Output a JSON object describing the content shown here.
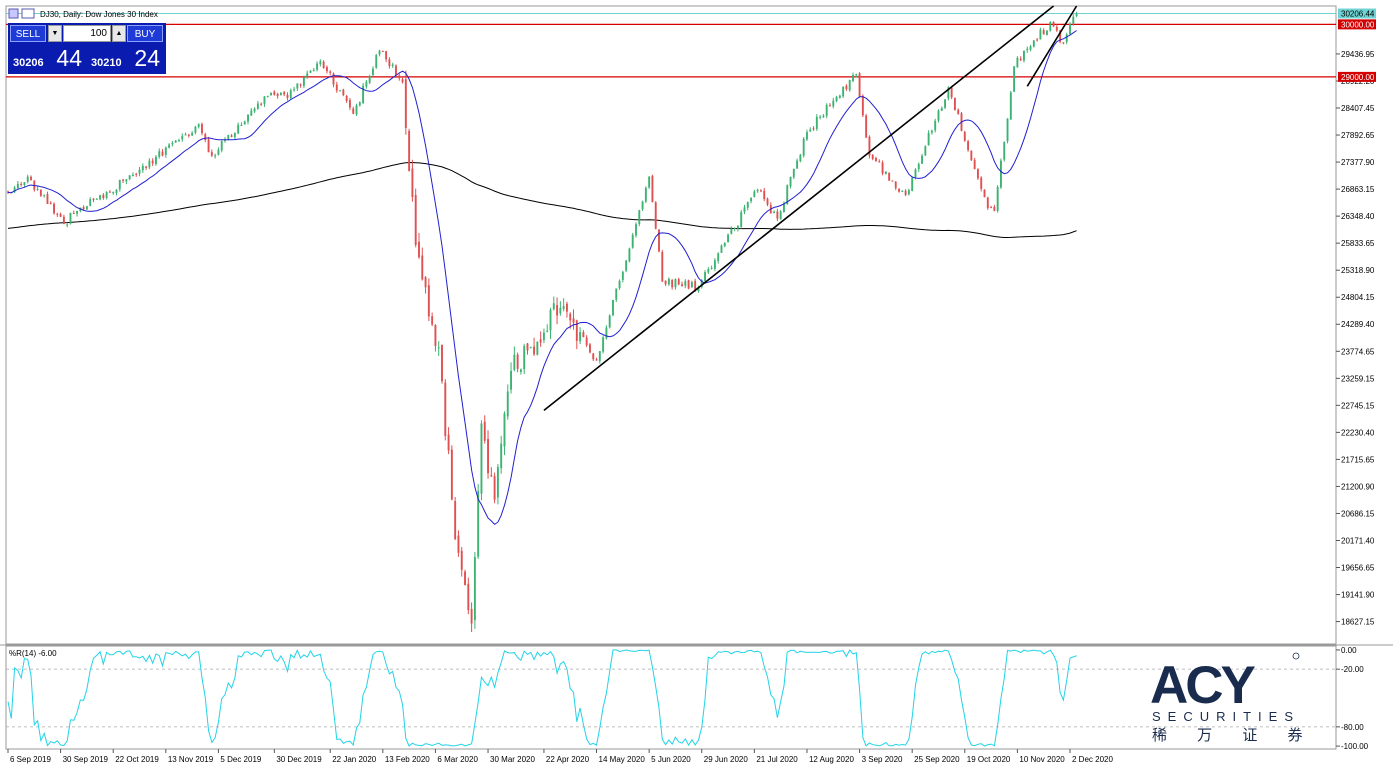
{
  "window": {
    "title": "DJ30, Daily:  Dow Jones 30 Index"
  },
  "trade_panel": {
    "sell_label": "SELL",
    "buy_label": "BUY",
    "lot_value": "100",
    "sell_price_main": "30206",
    "sell_price_big": "44",
    "buy_price_main": "30210",
    "buy_price_big": "24"
  },
  "logo": {
    "brand": "ACY",
    "subtitle": "SECURITIES",
    "chinese": "稀 万 证 券"
  },
  "colors": {
    "bullish": "#3cb371",
    "bearish": "#e05050",
    "ma_fast": "#2020d0",
    "ma_slow": "#000000",
    "hline": "#d40000",
    "current_price": "#6fd3d3",
    "wpr": "#22d3e8",
    "logo": "#1a2c4e"
  },
  "chart_data": [
    {
      "type": "candlestick",
      "title": "DJ30, Daily:  Dow Jones 30 Index",
      "x_tick_labels": [
        "6 Sep 2019",
        "30 Sep 2019",
        "22 Oct 2019",
        "13 Nov 2019",
        "5 Dec 2019",
        "30 Dec 2019",
        "22 Jan 2020",
        "13 Feb 2020",
        "6 Mar 2020",
        "30 Mar 2020",
        "22 Apr 2020",
        "14 May 2020",
        "5 Jun 2020",
        "29 Jun 2020",
        "21 Jul 2020",
        "12 Aug 2020",
        "3 Sep 2020",
        "25 Sep 2020",
        "19 Oct 2020",
        "10 Nov 2020",
        "2 Dec 2020"
      ],
      "y_tick_labels": [
        "29436.95",
        "28922.20",
        "28407.45",
        "27892.65",
        "27377.90",
        "26863.15",
        "26348.40",
        "25833.65",
        "25318.90",
        "24804.15",
        "24289.40",
        "23774.65",
        "23259.15",
        "22745.15",
        "22230.40",
        "21715.65",
        "21200.90",
        "20686.15",
        "20171.40",
        "19656.65",
        "19141.90",
        "18627.15"
      ],
      "ylim": [
        18200,
        30350
      ],
      "current_price": 30206.44,
      "current_price_label": "30206.44",
      "horizontal_levels": [
        {
          "value": 30000,
          "label": "30000.00"
        },
        {
          "value": 29000,
          "label": "29000.00"
        }
      ],
      "moving_averages": [
        {
          "period": "fast",
          "color": "#2020d0"
        },
        {
          "period": "slow",
          "color": "#000000"
        }
      ],
      "trendlines": [
        {
          "from": [
            "22 Apr 2020",
            22650
          ],
          "to": [
            "25 Nov 2020",
            30350
          ]
        },
        {
          "from": [
            "13 Nov 2020",
            28820
          ],
          "to": [
            "11 Dec 2020",
            30350
          ]
        }
      ],
      "anchors": [
        {
          "date": "6 Sep 2019",
          "close": 26800
        },
        {
          "date": "16 Sep 2019",
          "close": 27100
        },
        {
          "date": "1 Oct 2019",
          "close": 26200
        },
        {
          "date": "4 Oct 2019",
          "close": 26400
        },
        {
          "date": "28 Oct 2019",
          "close": 27050
        },
        {
          "date": "27 Nov 2019",
          "close": 28100
        },
        {
          "date": "3 Dec 2019",
          "close": 27500
        },
        {
          "date": "27 Dec 2019",
          "close": 28700
        },
        {
          "date": "3 Jan 2020",
          "close": 28600
        },
        {
          "date": "17 Jan 2020",
          "close": 29300
        },
        {
          "date": "31 Jan 2020",
          "close": 28300
        },
        {
          "date": "12 Feb 2020",
          "close": 29500
        },
        {
          "date": "21 Feb 2020",
          "close": 28900
        },
        {
          "date": "27 Feb 2020",
          "close": 25800
        },
        {
          "date": "9 Mar 2020",
          "close": 23850
        },
        {
          "date": "16 Mar 2020",
          "close": 20200
        },
        {
          "date": "23 Mar 2020",
          "close": 18590
        },
        {
          "date": "26 Mar 2020",
          "close": 22400
        },
        {
          "date": "1 Apr 2020",
          "close": 20950
        },
        {
          "date": "8 Apr 2020",
          "close": 23400
        },
        {
          "date": "29 Apr 2020",
          "close": 24600
        },
        {
          "date": "14 May 2020",
          "close": 23600
        },
        {
          "date": "5 Jun 2020",
          "close": 27100
        },
        {
          "date": "11 Jun 2020",
          "close": 25100
        },
        {
          "date": "26 Jun 2020",
          "close": 25000
        },
        {
          "date": "22 Jul 2020",
          "close": 26850
        },
        {
          "date": "30 Jul 2020",
          "close": 26300
        },
        {
          "date": "12 Aug 2020",
          "close": 27950
        },
        {
          "date": "2 Sep 2020",
          "close": 29050
        },
        {
          "date": "8 Sep 2020",
          "close": 27500
        },
        {
          "date": "23 Sep 2020",
          "close": 26750
        },
        {
          "date": "12 Oct 2020",
          "close": 28800
        },
        {
          "date": "28 Oct 2020",
          "close": 26500
        },
        {
          "date": "30 Oct 2020",
          "close": 26450
        },
        {
          "date": "9 Nov 2020",
          "close": 29200
        },
        {
          "date": "24 Nov 2020",
          "close": 30050
        },
        {
          "date": "30 Nov 2020",
          "close": 29650
        },
        {
          "date": "4 Dec 2020",
          "close": 30206
        }
      ]
    },
    {
      "type": "line",
      "indicator": "%R(14)",
      "label": "%R(14) -6.00",
      "last_value": -6.0,
      "ylim": [
        -102,
        2
      ],
      "y_tick_labels": [
        "0.00",
        "-20.00",
        "-80.00",
        "-100.00"
      ],
      "reference_levels": [
        -20,
        -80
      ]
    }
  ]
}
